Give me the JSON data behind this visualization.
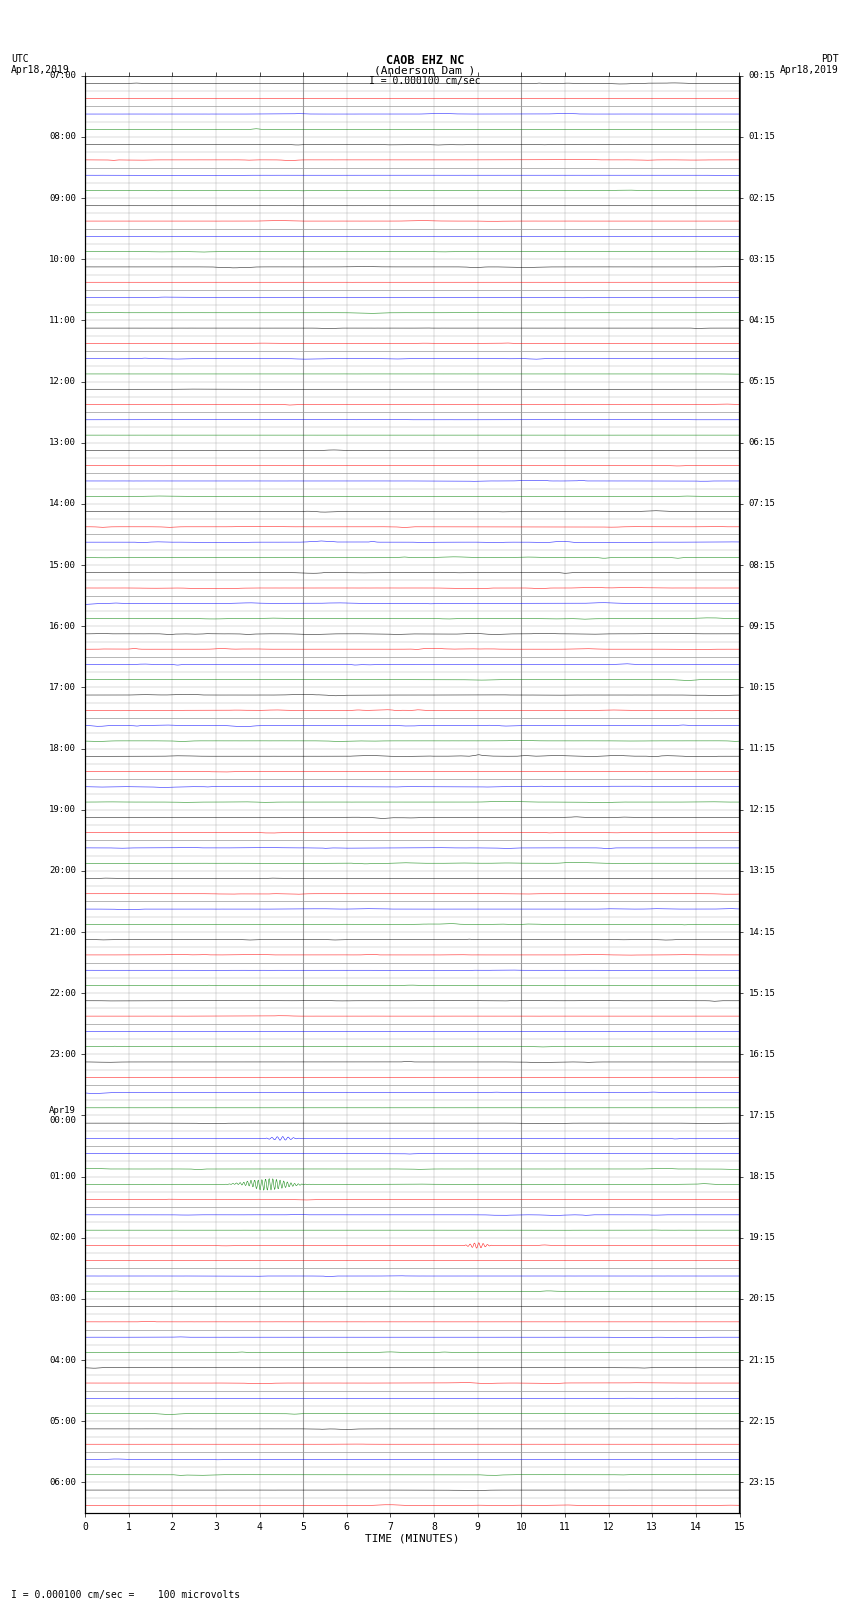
{
  "title_line1": "CAOB EHZ NC",
  "title_line2": "(Anderson Dam )",
  "title_scale": "I = 0.000100 cm/sec",
  "xlabel": "TIME (MINUTES)",
  "footer": "I = 0.000100 cm/sec =    100 microvolts",
  "x_min": 0,
  "x_max": 15,
  "left_times_all": [
    "07:00",
    "",
    "",
    "",
    "08:00",
    "",
    "",
    "",
    "09:00",
    "",
    "",
    "",
    "10:00",
    "",
    "",
    "",
    "11:00",
    "",
    "",
    "",
    "12:00",
    "",
    "",
    "",
    "13:00",
    "",
    "",
    "",
    "14:00",
    "",
    "",
    "",
    "15:00",
    "",
    "",
    "",
    "16:00",
    "",
    "",
    "",
    "17:00",
    "",
    "",
    "",
    "18:00",
    "",
    "",
    "",
    "19:00",
    "",
    "",
    "",
    "20:00",
    "",
    "",
    "",
    "21:00",
    "",
    "",
    "",
    "22:00",
    "",
    "",
    "",
    "23:00",
    "",
    "",
    "",
    "Apr19\n00:00",
    "",
    "",
    "",
    "01:00",
    "",
    "",
    "",
    "02:00",
    "",
    "",
    "",
    "03:00",
    "",
    "",
    "",
    "04:00",
    "",
    "",
    "",
    "05:00",
    "",
    "",
    "",
    "06:00",
    ""
  ],
  "right_times_all": [
    "00:15",
    "",
    "",
    "",
    "01:15",
    "",
    "",
    "",
    "02:15",
    "",
    "",
    "",
    "03:15",
    "",
    "",
    "",
    "04:15",
    "",
    "",
    "",
    "05:15",
    "",
    "",
    "",
    "06:15",
    "",
    "",
    "",
    "07:15",
    "",
    "",
    "",
    "08:15",
    "",
    "",
    "",
    "09:15",
    "",
    "",
    "",
    "10:15",
    "",
    "",
    "",
    "11:15",
    "",
    "",
    "",
    "12:15",
    "",
    "",
    "",
    "13:15",
    "",
    "",
    "",
    "14:15",
    "",
    "",
    "",
    "15:15",
    "",
    "",
    "",
    "16:15",
    "",
    "",
    "",
    "17:15",
    "",
    "",
    "",
    "18:15",
    "",
    "",
    "",
    "19:15",
    "",
    "",
    "",
    "20:15",
    "",
    "",
    "",
    "21:15",
    "",
    "",
    "",
    "22:15",
    "",
    "",
    "",
    "23:15",
    ""
  ],
  "row_colors": [
    "black",
    "red",
    "blue",
    "green"
  ],
  "grid_color": "#999999",
  "major_grid_color": "#555555",
  "noise_amplitude": 0.03,
  "num_points": 1500,
  "green_earthquake_row": 72,
  "green_earthquake_time": 4.2,
  "green_earthquake_amp": 0.38,
  "red_earthquake_row": 76,
  "red_earthquake_time": 9.0,
  "red_earthquake_amp": 0.18,
  "blue_spike_row": 69,
  "blue_spike_time": 4.5,
  "blue_spike_amp": 0.12,
  "last_row_blue_time": 7.5,
  "last_row_blue_amp": 0.05
}
